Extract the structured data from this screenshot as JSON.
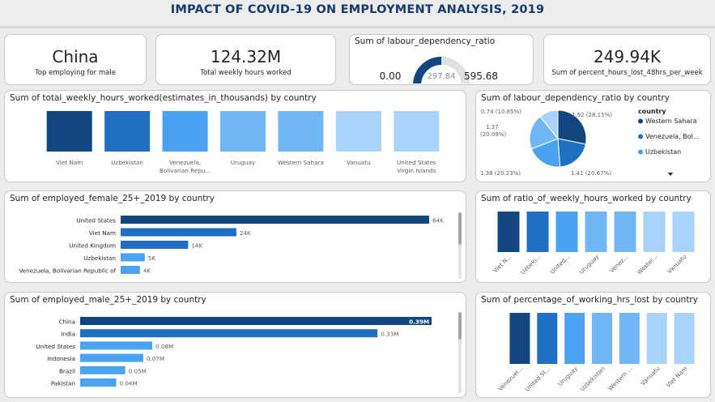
{
  "header": {
    "title": "IMPACT OF COVID-19 ON EMPLOYMENT ANALYSIS, 2019"
  },
  "kpis": {
    "top_country": {
      "value": "China",
      "label": "Top employing for male"
    },
    "total_hours": {
      "value": "124.32M",
      "label": "Total weekly hours worked"
    },
    "percent_lost": {
      "value": "249.94K",
      "label": "Sum of percent_hours_lost_48hrs_per_week"
    }
  },
  "gauge": {
    "title": "Sum of labour_dependency_ratio",
    "min_label": "0.00",
    "max_label": "595.68",
    "value_label": "297.84",
    "value": 297.84,
    "min": 0,
    "max": 595.68
  },
  "colors": {
    "dark": "#12467f",
    "mid": "#1f6fc5",
    "light": "#4aa3f0",
    "lighter": "#6fb7f5",
    "lightest": "#a9d3fb"
  },
  "legend": {
    "title": "country",
    "items": [
      "Western Sahara",
      "Venezuela, Bol...",
      "Uzbekistan"
    ],
    "more_icon": "triangle-down-icon"
  },
  "chart_data": [
    {
      "id": "weekly_hours",
      "type": "bar",
      "title": "Sum of total_weekly_hours_worked(estimates_in_thousands) by country",
      "categories": [
        "Viet Nam",
        "Uzbekistan",
        "Venezuela, Bolivarian Repu...",
        "Uruguay",
        "Western Sahara",
        "Vanuatu",
        "United States Virgin Islands"
      ],
      "tick_labels": [
        [
          "Viet Nam"
        ],
        [
          "Uzbekistan"
        ],
        [
          "Venezuela,",
          "Bolivarian Repu..."
        ],
        [
          "Uruguay"
        ],
        [
          "Western Sahara"
        ],
        [
          "Vanuatu"
        ],
        [
          "United States",
          "Virgin Islands"
        ]
      ],
      "colors": [
        "#12467f",
        "#1f6fc5",
        "#4aa3f0",
        "#6fb7f5",
        "#6fb7f5",
        "#a9d3fb",
        "#a9d3fb"
      ]
    },
    {
      "id": "labour_pie",
      "type": "pie",
      "title": "Sum of labour_dependency_ratio by country",
      "slices": [
        {
          "value": 1.92,
          "label": "1.92 (28.15%)",
          "color": "#12467f"
        },
        {
          "value": 1.41,
          "label": "1.41 (20.67%)",
          "color": "#1f6fc5"
        },
        {
          "value": 1.38,
          "label": "1.38 (20.23%)",
          "color": "#4aa3f0"
        },
        {
          "value": 1.37,
          "label": "1.37 (20.09%)",
          "color": "#6fb7f5"
        },
        {
          "value": 0.74,
          "label": "0.74 (10.85%)",
          "color": "#a9d3fb"
        }
      ]
    },
    {
      "id": "employed_female",
      "type": "bar",
      "orientation": "horizontal",
      "title": "Sum of employed_female_25+_2019 by country",
      "categories": [
        "United States",
        "Viet Nam",
        "United Kingdom",
        "Uzbekistan",
        "Venezuela, Bolivarian Republic of"
      ],
      "values": [
        64000,
        24000,
        14000,
        5000,
        4000
      ],
      "value_labels": [
        "64K",
        "24K",
        "14K",
        "5K",
        "4K"
      ],
      "colors": [
        "#12467f",
        "#1f6fc5",
        "#1f6fc5",
        "#4aa3f0",
        "#4aa3f0"
      ],
      "xlim": [
        0,
        64000
      ]
    },
    {
      "id": "weekly_ratio",
      "type": "bar",
      "title": "Sum of ratio_of_weekly_hours_worked by country",
      "categories": [
        "Viet N...",
        "Uzbeki...",
        "United...",
        "Uruguay",
        "Venez...",
        "Wester...",
        "Vanuatu"
      ],
      "colors": [
        "#12467f",
        "#1f6fc5",
        "#4aa3f0",
        "#6fb7f5",
        "#6fb7f5",
        "#a9d3fb",
        "#a9d3fb"
      ]
    },
    {
      "id": "employed_male",
      "type": "bar",
      "orientation": "horizontal",
      "title": "Sum of employed_male_25+_2019 by country",
      "categories": [
        "China",
        "India",
        "United States",
        "Indonesia",
        "Brazil",
        "Pakistan"
      ],
      "values": [
        0.39,
        0.33,
        0.08,
        0.07,
        0.05,
        0.04
      ],
      "value_labels": [
        "0.39M",
        "0.33M",
        "0.08M",
        "0.07M",
        "0.05M",
        "0.04M"
      ],
      "colors": [
        "#12467f",
        "#1f6fc5",
        "#4aa3f0",
        "#4aa3f0",
        "#4aa3f0",
        "#4aa3f0"
      ],
      "xlim": [
        0,
        0.39
      ]
    },
    {
      "id": "hrs_lost",
      "type": "bar",
      "title": "Sum of percentage_of_working_hrs_lost by country",
      "categories": [
        "Venezuel...",
        "United St...",
        "Uruguay",
        "Uzbekistan",
        "Western ...",
        "Vanuatu",
        "Viet Nam"
      ],
      "colors": [
        "#12467f",
        "#1f6fc5",
        "#4aa3f0",
        "#6fb7f5",
        "#6fb7f5",
        "#a9d3fb",
        "#a9d3fb"
      ]
    }
  ]
}
